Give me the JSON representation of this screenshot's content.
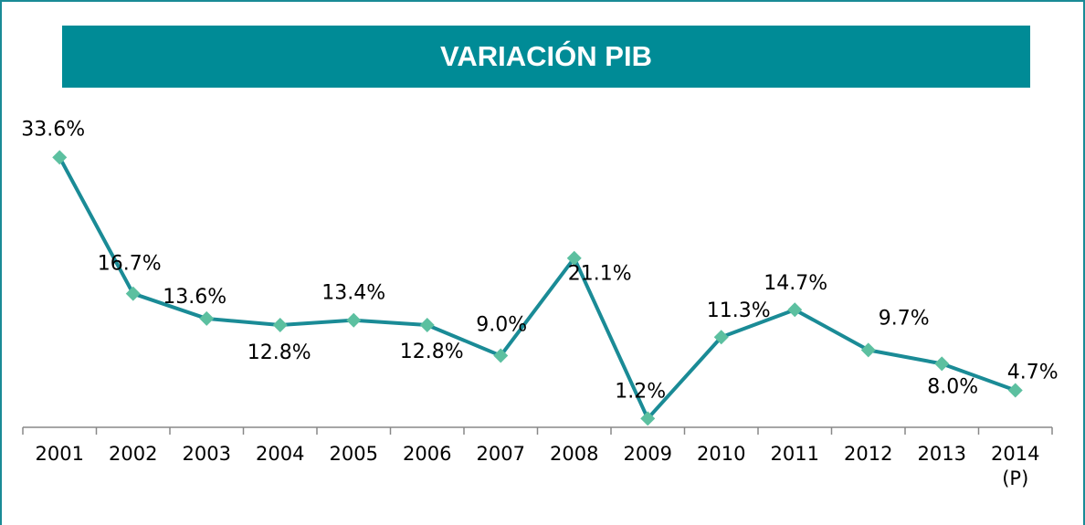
{
  "chart_data": {
    "type": "line",
    "title": "VARIACIÓN PIB",
    "categories": [
      "2001",
      "2002",
      "2003",
      "2004",
      "2005",
      "2006",
      "2007",
      "2008",
      "2009",
      "2010",
      "2011",
      "2012",
      "2013",
      "2014 (P)"
    ],
    "series": [
      {
        "name": "Variación PIB",
        "color": "#1a8b96",
        "values": [
          33.6,
          16.7,
          13.6,
          12.8,
          13.4,
          12.8,
          9.0,
          21.1,
          1.2,
          11.3,
          14.7,
          9.7,
          8.0,
          4.7
        ],
        "value_labels": [
          "33.6%",
          "16.7%",
          "13.6%",
          "12.8%",
          "13.4%",
          "12.8%",
          "9.0%",
          "21.1%",
          "1.2%",
          "11.3%",
          "14.7%",
          "9.7%",
          "8.0%",
          "4.7%"
        ]
      }
    ],
    "marker_color": "#5cc0a0",
    "ylim": [
      0,
      35
    ]
  }
}
